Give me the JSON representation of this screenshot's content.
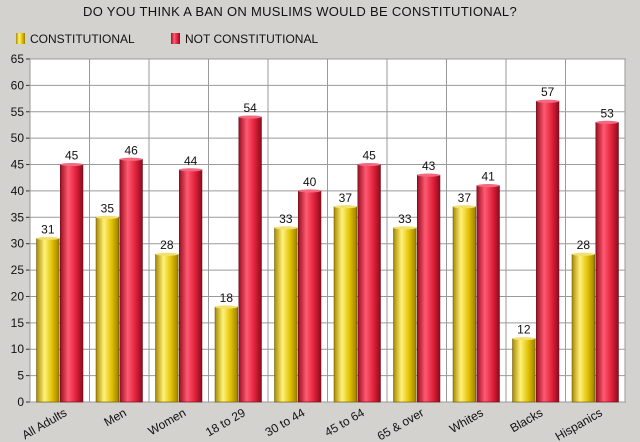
{
  "chart_data": {
    "type": "bar",
    "title": "DO YOU THINK A BAN ON MUSLIMS WOULD BE CONSTITUTIONAL?",
    "xlabel": "",
    "ylabel": "",
    "categories": [
      "All Adults",
      "Men",
      "Women",
      "18 to 29",
      "30 to 44",
      "45 to 64",
      "65 & over",
      "Whites",
      "Blacks",
      "Hispanics"
    ],
    "series": [
      {
        "name": "CONSTITUTIONAL",
        "values": [
          31,
          35,
          28,
          18,
          33,
          37,
          33,
          37,
          12,
          28
        ],
        "color": "#e8c800"
      },
      {
        "name": "NOT CONSTITUTIONAL",
        "values": [
          45,
          46,
          44,
          54,
          40,
          45,
          43,
          41,
          57,
          53
        ],
        "color": "#e0203a"
      }
    ],
    "ylim": [
      0,
      65
    ],
    "yticks": [
      0,
      5,
      10,
      15,
      20,
      25,
      30,
      35,
      40,
      45,
      50,
      55,
      60,
      65
    ],
    "grid": true,
    "legend": "top-left",
    "data_labels": true
  }
}
